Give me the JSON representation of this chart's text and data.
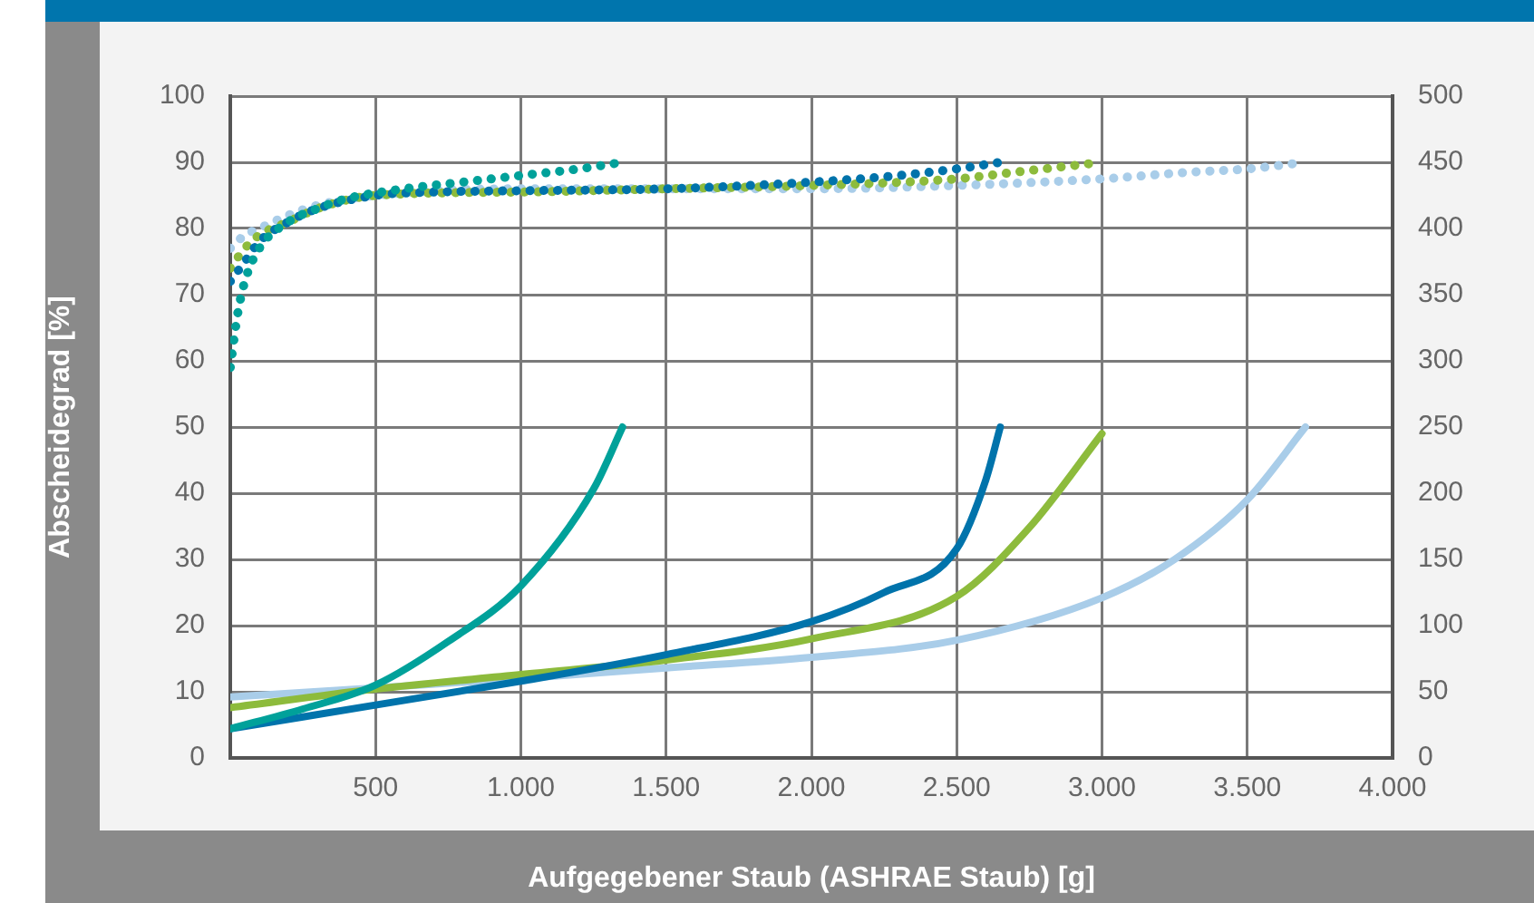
{
  "chart_data": {
    "type": "line",
    "xlabel": "Aufgegebener Staub (ASHRAE Staub) [g]",
    "ylabel": "Abscheidegrad [%]",
    "xlim": [
      0,
      4000
    ],
    "xticks": [
      500,
      {
        "value": 1000,
        "label": "1.000"
      },
      {
        "value": 1500,
        "label": "1.500"
      },
      {
        "value": 2000,
        "label": "2.000"
      },
      {
        "value": 2500,
        "label": "2.500"
      },
      {
        "value": 3000,
        "label": "3.000"
      },
      {
        "value": 3500,
        "label": "3.500"
      },
      {
        "value": 4000,
        "label": "4.000"
      }
    ],
    "ylim": [
      0,
      100
    ],
    "yticks": [
      0,
      10,
      20,
      30,
      40,
      50,
      60,
      70,
      80,
      90,
      100
    ],
    "y2lim": [
      0,
      500
    ],
    "y2ticks": [
      0,
      50,
      100,
      150,
      200,
      250,
      300,
      350,
      400,
      450,
      500
    ],
    "grid": true,
    "legend": false,
    "series": [
      {
        "color": "#00a19a",
        "line_style": "dotted",
        "x": [
          0,
          25,
          50,
          100,
          200,
          300,
          400,
          600,
          800,
          1000,
          1200,
          1350
        ],
        "values": [
          59,
          67,
          72,
          77,
          81,
          83,
          84.5,
          86,
          87,
          88,
          89,
          90
        ]
      },
      {
        "color": "#0073ab",
        "line_style": "dotted",
        "x": [
          0,
          50,
          100,
          200,
          300,
          500,
          700,
          1000,
          1500,
          2000,
          2300,
          2500,
          2650
        ],
        "values": [
          72,
          75,
          78,
          81,
          83,
          85,
          85.5,
          85.7,
          86,
          87,
          88,
          89,
          90
        ]
      },
      {
        "color": "#8dbb3c",
        "line_style": "dotted",
        "x": [
          0,
          50,
          100,
          200,
          300,
          500,
          1000,
          1500,
          2000,
          2500,
          2700,
          3000
        ],
        "values": [
          74,
          77,
          79,
          81,
          83,
          85,
          85.5,
          86,
          86.5,
          87.5,
          88.5,
          90
        ]
      },
      {
        "color": "#a9cde9",
        "line_style": "dotted",
        "x": [
          0,
          50,
          100,
          200,
          300,
          500,
          1000,
          1500,
          2000,
          2500,
          3000,
          3300,
          3500,
          3700
        ],
        "values": [
          77,
          79,
          80,
          82,
          83.5,
          85,
          86,
          86,
          86,
          86.5,
          87.5,
          88.5,
          89,
          90
        ]
      },
      {
        "color": "#00a19a",
        "line_style": "solid",
        "axis": "y2",
        "x": [
          0,
          250,
          500,
          750,
          1000,
          1250,
          1350
        ],
        "values": [
          22,
          37,
          55,
          88,
          130,
          203,
          250
        ]
      },
      {
        "color": "#0073ab",
        "line_style": "solid",
        "axis": "y2",
        "x": [
          0,
          500,
          1000,
          1500,
          2000,
          2250,
          2500,
          2600,
          2650
        ],
        "values": [
          22,
          40,
          58,
          78,
          103,
          125,
          158,
          210,
          250
        ]
      },
      {
        "color": "#8dbb3c",
        "line_style": "solid",
        "axis": "y2",
        "x": [
          0,
          500,
          1000,
          1500,
          2000,
          2500,
          2750,
          3000
        ],
        "values": [
          38,
          52,
          63,
          74,
          90,
          122,
          174,
          245
        ]
      },
      {
        "color": "#a9cde9",
        "line_style": "solid",
        "axis": "y2",
        "x": [
          0,
          500,
          1000,
          1500,
          2000,
          2500,
          3000,
          3250,
          3500,
          3700
        ],
        "values": [
          46,
          53,
          60,
          68,
          76,
          89,
          121,
          150,
          195,
          250
        ]
      }
    ]
  }
}
